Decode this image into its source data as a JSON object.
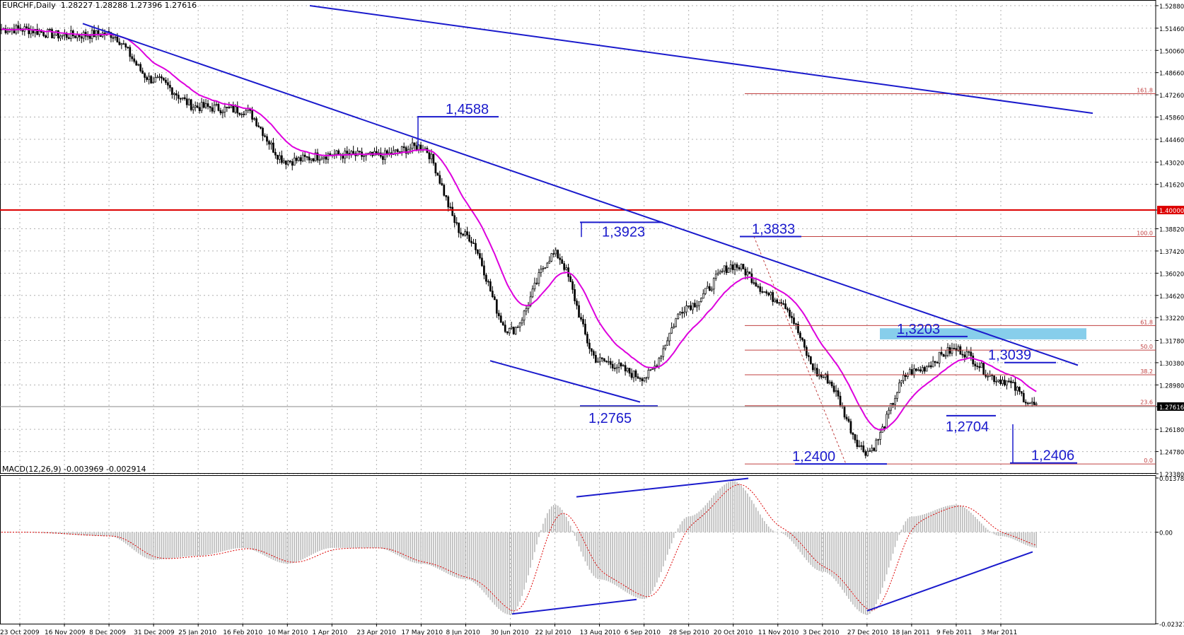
{
  "header": {
    "symbol_line": "EURCHF,Daily  1.28227 1.28288 1.27396 1.27616",
    "macd_line": "MACD(12,26,9) -0.003969 -0.002914"
  },
  "colors": {
    "trendline": "#1a1acc",
    "level_line": "#dd0000",
    "fib_line": "#c04040",
    "ma": "#dd00dd",
    "candle": "#000000",
    "histogram": "#b8b8b8",
    "signal": "#dd0000",
    "zone": "#87ceeb",
    "grid": "#b0b0b0",
    "price_tag_bg": "#dd0000",
    "current_tag_bg": "#000000"
  },
  "chart_data": [
    {
      "type": "candlestick",
      "title": "EURCHF,Daily",
      "ylim": [
        1.2338,
        1.5288
      ],
      "price_ticks": [
        "1.52880",
        "1.51460",
        "1.50060",
        "1.48660",
        "1.47260",
        "1.45860",
        "1.44460",
        "1.43020",
        "1.41620",
        "1.40000",
        "1.38820",
        "1.37420",
        "1.36020",
        "1.34620",
        "1.33220",
        "1.31780",
        "1.30380",
        "1.28980",
        "1.27616",
        "1.26180",
        "1.24780",
        "1.23380"
      ],
      "date_labels": [
        "23 Oct 2009",
        "16 Nov 2009",
        "8 Dec 2009",
        "31 Dec 2009",
        "25 Jan 2010",
        "16 Feb 2010",
        "10 Mar 2010",
        "1 Apr 2010",
        "23 Apr 2010",
        "17 May 2010",
        "8 Jun 2010",
        "30 Jun 2010",
        "22 Jul 2010",
        "13 Aug 2010",
        "6 Sep 2010",
        "28 Sep 2010",
        "20 Oct 2010",
        "11 Nov 2010",
        "3 Dec 2010",
        "27 Dec 2010",
        "18 Jan 2011",
        "9 Feb 2011",
        "3 Mar 2011"
      ],
      "anchor_points": [
        {
          "x": "23 Oct 2009",
          "y": 1.514
        },
        {
          "x": "16 Nov 2009",
          "y": 1.51
        },
        {
          "x": "8 Dec 2009",
          "y": 1.511
        },
        {
          "x": "31 Dec 2009",
          "y": 1.482
        },
        {
          "x": "25 Jan 2010",
          "y": 1.465
        },
        {
          "x": "16 Feb 2010",
          "y": 1.463
        },
        {
          "x": "10 Mar 2010",
          "y": 1.431
        },
        {
          "x": "1 Apr 2010",
          "y": 1.435
        },
        {
          "x": "23 Apr 2010",
          "y": 1.434
        },
        {
          "x": "17 May 2010",
          "y": 1.44
        },
        {
          "x": "8 Jun 2010",
          "y": 1.384
        },
        {
          "x": "30 Jun 2010",
          "y": 1.324
        },
        {
          "x": "22 Jul 2010",
          "y": 1.372
        },
        {
          "x": "13 Aug 2010",
          "y": 1.305
        },
        {
          "x": "6 Sep 2010",
          "y": 1.295
        },
        {
          "x": "28 Sep 2010",
          "y": 1.34
        },
        {
          "x": "20 Oct 2010",
          "y": 1.365
        },
        {
          "x": "11 Nov 2010",
          "y": 1.344
        },
        {
          "x": "3 Dec 2010",
          "y": 1.295
        },
        {
          "x": "27 Dec 2010",
          "y": 1.248
        },
        {
          "x": "18 Jan 2011",
          "y": 1.298
        },
        {
          "x": "9 Feb 2011",
          "y": 1.312
        },
        {
          "x": "3 Mar 2011",
          "y": 1.293
        },
        {
          "x": "18 Mar 2011",
          "y": 1.2762
        }
      ],
      "last_bar": {
        "open": 1.28227,
        "high": 1.28288,
        "low": 1.27396,
        "close": 1.27616
      },
      "horizontal_level": "1.40000",
      "fibonacci": {
        "levels": [
          "161.8",
          "100.0",
          "61.8",
          "50.0",
          "38.2",
          "23.6",
          "0.0"
        ],
        "values": [
          1.4733,
          1.3833,
          1.3272,
          1.3117,
          1.2962,
          1.2767,
          1.24
        ]
      },
      "annotations": [
        {
          "label": "1,4588",
          "y": 1.4588
        },
        {
          "label": "1,3923",
          "y": 1.3923
        },
        {
          "label": "1,3833",
          "y": 1.3833
        },
        {
          "label": "1,3203",
          "y": 1.3203
        },
        {
          "label": "1,3039",
          "y": 1.3039
        },
        {
          "label": "1,2765",
          "y": 1.2765
        },
        {
          "label": "1,2704",
          "y": 1.2704
        },
        {
          "label": "1,2400",
          "y": 1.24
        },
        {
          "label": "1,2406",
          "y": 1.2406
        }
      ],
      "resistance_zone": {
        "from": 1.3185,
        "to": 1.3255
      }
    },
    {
      "type": "histogram",
      "title": "MACD(12,26,9)",
      "values_shown": {
        "macd": -0.003969,
        "signal": -0.002914
      },
      "ylim": [
        -0.02327,
        0.01378
      ],
      "ticks": [
        "0.013786",
        "0.00",
        "-0.02327"
      ],
      "anchor_points": [
        {
          "x": "23 Oct 2009",
          "y": 0.0
        },
        {
          "x": "8 Dec 2009",
          "y": -0.001
        },
        {
          "x": "31 Dec 2009",
          "y": -0.007
        },
        {
          "x": "25 Jan 2010",
          "y": -0.006
        },
        {
          "x": "16 Feb 2010",
          "y": -0.004
        },
        {
          "x": "10 Mar 2010",
          "y": -0.008
        },
        {
          "x": "1 Apr 2010",
          "y": -0.004
        },
        {
          "x": "23 Apr 2010",
          "y": -0.004
        },
        {
          "x": "17 May 2010",
          "y": -0.008
        },
        {
          "x": "8 Jun 2010",
          "y": -0.012
        },
        {
          "x": "30 Jun 2010",
          "y": -0.021
        },
        {
          "x": "22 Jul 2010",
          "y": 0.007
        },
        {
          "x": "13 Aug 2010",
          "y": -0.012
        },
        {
          "x": "6 Sep 2010",
          "y": -0.017
        },
        {
          "x": "28 Sep 2010",
          "y": 0.004
        },
        {
          "x": "20 Oct 2010",
          "y": 0.013
        },
        {
          "x": "11 Nov 2010",
          "y": 0.0
        },
        {
          "x": "3 Dec 2010",
          "y": -0.01
        },
        {
          "x": "27 Dec 2010",
          "y": -0.021
        },
        {
          "x": "18 Jan 2011",
          "y": 0.004
        },
        {
          "x": "9 Feb 2011",
          "y": 0.007
        },
        {
          "x": "3 Mar 2011",
          "y": -0.001
        },
        {
          "x": "18 Mar 2011",
          "y": -0.004
        }
      ]
    }
  ]
}
